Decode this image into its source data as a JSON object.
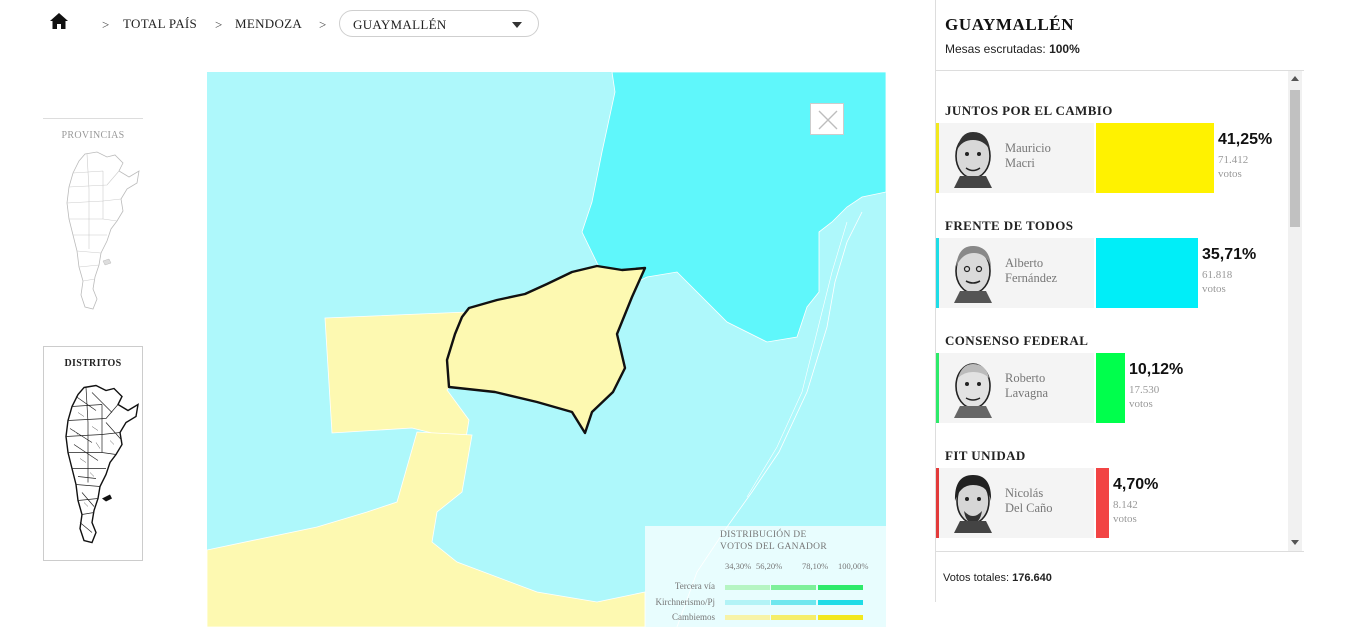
{
  "breadcrumb": {
    "home_icon": "home-icon",
    "separator": ">",
    "items": [
      "TOTAL PAÍS",
      "MENDOZA"
    ],
    "selected": "GUAYMALLÉN"
  },
  "minimaps": {
    "provincias_label": "PROVINCIAS",
    "distritos_label": "DISTRITOS"
  },
  "map": {
    "close_icon": "close-icon",
    "colors": {
      "kirchnerismo_low": "#aef8fb",
      "kirchnerismo_high": "#5ff7fb",
      "cambiemos_low": "#fdf9b1",
      "selected_outline": "#111111"
    }
  },
  "legend": {
    "title_line1": "DISTRIBUCIÓN DE",
    "title_line2": "VOTOS DEL GANADOR",
    "ticks": [
      "34,30%",
      "56,20%",
      "78,10%",
      "100,00%"
    ],
    "rows": [
      {
        "label": "Tercera vía",
        "colors": [
          "#b6f5c3",
          "#7ef09a",
          "#2eea6a"
        ]
      },
      {
        "label": "Kirchnerismo/Pj",
        "colors": [
          "#b2f3f6",
          "#6fe7ee",
          "#1fdce6"
        ]
      },
      {
        "label": "Cambiemos",
        "colors": [
          "#f7f3a8",
          "#f5ee6a",
          "#f2e81e"
        ]
      }
    ]
  },
  "panel": {
    "title": "GUAYMALLÉN",
    "mesas_label": "Mesas escrutadas:",
    "mesas_value": "100%",
    "total_label": "Votos totales:",
    "total_value": "176.640",
    "parties": [
      {
        "party": "JUNTOS POR EL CAMBIO",
        "first": "Mauricio",
        "last": "Macri",
        "pct": "41,25%",
        "votes": "71.412",
        "votes_label": "votos",
        "share": 41.25,
        "color": "#fff200",
        "accent": "#f2e81e"
      },
      {
        "party": "FRENTE DE TODOS",
        "first": "Alberto",
        "last": "Fernández",
        "pct": "35,71%",
        "votes": "61.818",
        "votes_label": "votos",
        "share": 35.71,
        "color": "#00eef8",
        "accent": "#1fdce6"
      },
      {
        "party": "CONSENSO FEDERAL",
        "first": "Roberto",
        "last": "Lavagna",
        "pct": "10,12%",
        "votes": "17.530",
        "votes_label": "votos",
        "share": 10.12,
        "color": "#00ff4c",
        "accent": "#2eea6a"
      },
      {
        "party": "FIT UNIDAD",
        "first": "Nicolás",
        "last": "Del Caño",
        "pct": "4,70%",
        "votes": "8.142",
        "votes_label": "votos",
        "share": 4.7,
        "color": "#f24444",
        "accent": "#e33b3b"
      }
    ]
  }
}
